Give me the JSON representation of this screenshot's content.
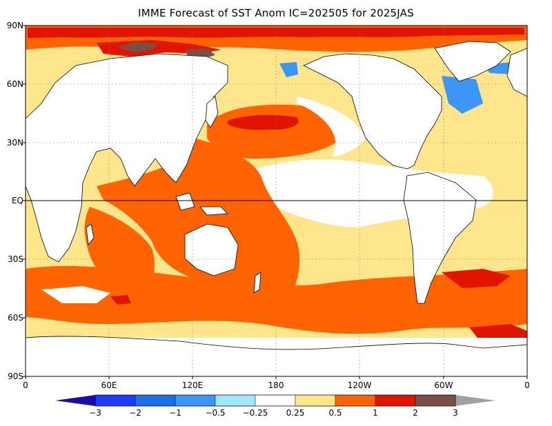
{
  "title": "IMME Forecast of SST Anom IC=202505 for 2025JAS",
  "y_axis_labels": [
    "90N",
    "60N",
    "30N",
    "EQ",
    "30S",
    "60S",
    "90S"
  ],
  "x_axis_labels": [
    "0",
    "60E",
    "120E",
    "180",
    "120W",
    "60W",
    "0"
  ],
  "colorbar": {
    "labels": [
      "−3",
      "−2",
      "−1",
      "−0.5",
      "−0.25",
      "0.25",
      "0.5",
      "1",
      "2",
      "3"
    ],
    "colors": [
      "#1E3CFF",
      "#1E6EE6",
      "#3C96F5",
      "#A0E6FF",
      "#FFFFFF",
      "#FFE68C",
      "#FF6400",
      "#E11400",
      "#785046"
    ]
  },
  "legend_colors": {
    "below_min": "#1A0CA8",
    "above_max": "#A0A0A0",
    "land": "#FFFFFF",
    "coastline": "#000000"
  }
}
